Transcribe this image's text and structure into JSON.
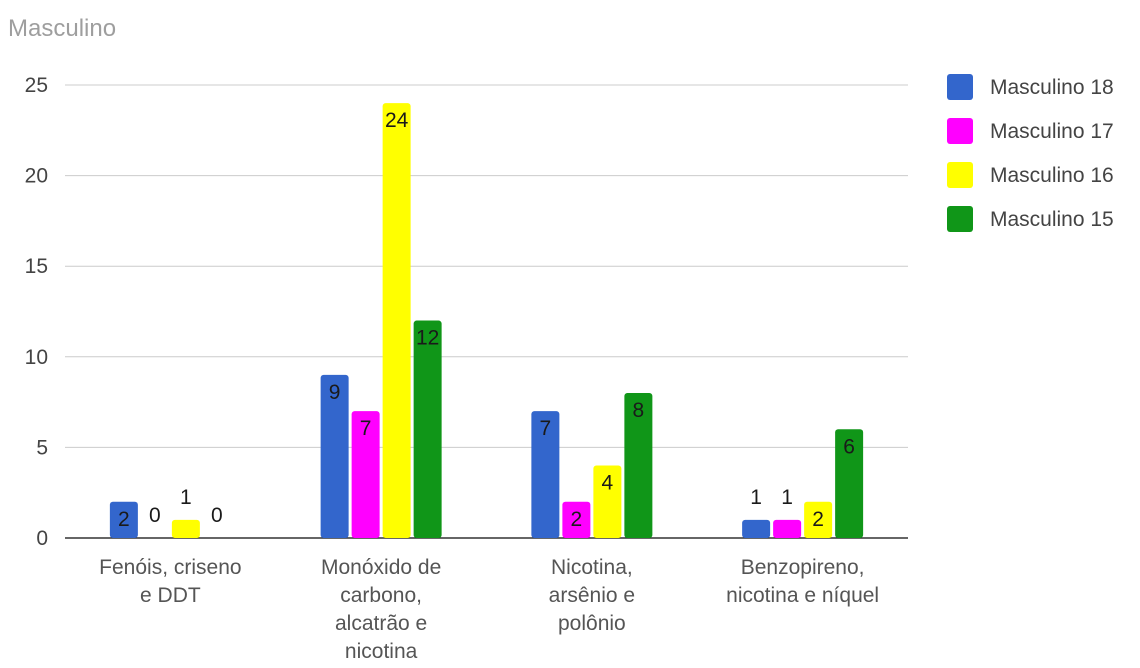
{
  "chart_data": {
    "type": "bar",
    "title": "Masculino",
    "categories": [
      [
        "Fenóis, criseno",
        "e DDT"
      ],
      [
        "Monóxido de",
        "carbono,",
        "alcatrão e",
        "nicotina"
      ],
      [
        "Nicotina,",
        "arsênio e",
        "polônio"
      ],
      [
        "Benzopireno,",
        "nicotina e níquel"
      ]
    ],
    "series": [
      {
        "name": "Masculino 18",
        "color": "#3366cc",
        "values": [
          2,
          9,
          7,
          1
        ]
      },
      {
        "name": "Masculino 17",
        "color": "#ff00ff",
        "values": [
          0,
          7,
          2,
          1
        ]
      },
      {
        "name": "Masculino 16",
        "color": "#ffff00",
        "values": [
          1,
          24,
          4,
          2
        ]
      },
      {
        "name": "Masculino 15",
        "color": "#109618",
        "values": [
          0,
          12,
          8,
          6
        ]
      }
    ],
    "ylim": [
      0,
      25
    ],
    "yticks": [
      0,
      5,
      10,
      15,
      20,
      25
    ],
    "grid": true,
    "legend": "right"
  }
}
